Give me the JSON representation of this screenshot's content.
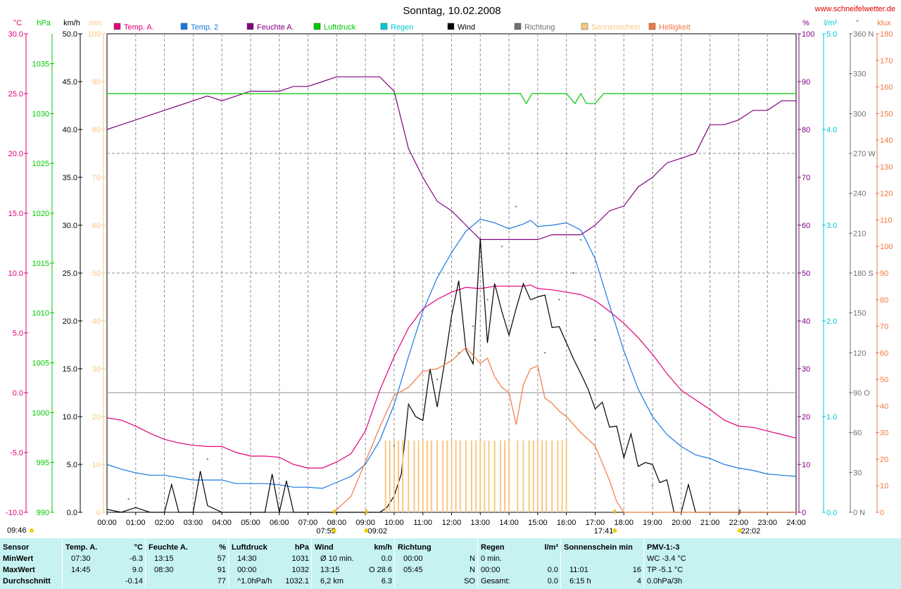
{
  "title": "Sonntag, 10.02.2008",
  "website": "www.schneifelwetter.de",
  "colors": {
    "temp": "#e0007a",
    "temp2": "#1a78e0",
    "humidity": "#800080",
    "pressure": "#00c800",
    "rain": "#00c8d0",
    "wind": "#000000",
    "direction": "#707070",
    "sunshine": "#f8c880",
    "brightness": "#f07840",
    "stats_bg": "#c6f2f2"
  },
  "legend": [
    {
      "label": "Temp. A.",
      "color": "#e0007a"
    },
    {
      "label": "Temp. 2",
      "color": "#1a78e0"
    },
    {
      "label": "Feuchte A.",
      "color": "#800080"
    },
    {
      "label": "Luftdruck",
      "color": "#00c800"
    },
    {
      "label": "Regen",
      "color": "#00c8d0"
    },
    {
      "label": "Wind",
      "color": "#000000"
    },
    {
      "label": "Richtung",
      "color": "#707070"
    },
    {
      "label": "Sonnenschein",
      "color": "#f8c880"
    },
    {
      "label": "Helligkeit",
      "color": "#f07840"
    }
  ],
  "chart_data": {
    "type": "line",
    "title": "Sonntag, 10.02.2008",
    "x_unit": "hours",
    "x_ticks": [
      "00:00",
      "01:00",
      "02:00",
      "03:00",
      "04:00",
      "05:00",
      "06:00",
      "07:00",
      "08:00",
      "09:00",
      "10:00",
      "11:00",
      "12:00",
      "13:00",
      "14:00",
      "15:00",
      "16:00",
      "17:00",
      "18:00",
      "19:00",
      "20:00",
      "21:00",
      "22:00",
      "23:00",
      "24:00"
    ],
    "axes": {
      "temp": {
        "unit": "°C",
        "range": [
          -10,
          30
        ],
        "ticks": [
          "-10.0",
          "-5.0",
          "0.0",
          "5.0",
          "10.0",
          "15.0",
          "20.0",
          "25.0",
          "30.0"
        ]
      },
      "pressure": {
        "unit": "hPa",
        "range": [
          990,
          1038
        ],
        "ticks": [
          "990",
          "995",
          "1000",
          "1005",
          "1010",
          "1015",
          "1020",
          "1025",
          "1030",
          "1035"
        ]
      },
      "wind": {
        "unit": "km/h",
        "range": [
          0,
          50
        ],
        "ticks": [
          "0.0",
          "5.0",
          "10.0",
          "15.0",
          "20.0",
          "25.0",
          "30.0",
          "35.0",
          "40.0",
          "45.0",
          "50.0"
        ]
      },
      "sunshine": {
        "unit": "min",
        "range": [
          0,
          100
        ],
        "ticks": [
          "0",
          "10",
          "20",
          "30",
          "40",
          "50",
          "60",
          "70",
          "80",
          "90",
          "100"
        ]
      },
      "humidity": {
        "unit": "%",
        "range": [
          0,
          100
        ],
        "ticks": [
          "0",
          "10",
          "20",
          "30",
          "40",
          "50",
          "60",
          "70",
          "80",
          "90",
          "100"
        ]
      },
      "rain": {
        "unit": "l/m²",
        "range": [
          0,
          5
        ],
        "ticks": [
          "0.0",
          "1.0",
          "2.0",
          "3.0",
          "4.0",
          "5.0"
        ]
      },
      "direction": {
        "unit": "°",
        "range": [
          0,
          360
        ],
        "ticks": [
          "0 N",
          "30",
          "60",
          "90 O",
          "120",
          "150",
          "180 S",
          "210",
          "240",
          "270 W",
          "300",
          "330",
          "360 N"
        ]
      },
      "brightness": {
        "unit": "klux",
        "range": [
          0,
          180
        ],
        "ticks": [
          "0",
          "10",
          "20",
          "30",
          "40",
          "50",
          "60",
          "70",
          "80",
          "90",
          "100",
          "110",
          "120",
          "130",
          "140",
          "150",
          "160",
          "170",
          "180"
        ]
      }
    },
    "series": [
      {
        "name": "Temp. A.",
        "axis": "temp",
        "x": [
          0,
          0.5,
          1,
          1.5,
          2,
          2.5,
          3,
          3.5,
          4,
          4.5,
          5,
          5.5,
          6,
          6.5,
          7,
          7.5,
          8,
          8.5,
          9,
          9.5,
          10,
          10.5,
          11,
          11.5,
          12,
          12.5,
          13,
          13.5,
          14,
          14.5,
          14.75,
          15,
          15.5,
          16,
          16.5,
          17,
          17.5,
          18,
          18.5,
          19,
          19.5,
          20,
          20.5,
          21,
          21.5,
          22,
          22.5,
          23,
          23.5,
          24
        ],
        "y": [
          -2.1,
          -2.3,
          -2.8,
          -3.4,
          -3.9,
          -4.2,
          -4.4,
          -4.5,
          -4.5,
          -5.0,
          -5.3,
          -5.3,
          -5.4,
          -6.0,
          -6.3,
          -6.3,
          -5.8,
          -5.1,
          -3.2,
          0.2,
          3.0,
          5.4,
          7.0,
          7.8,
          8.4,
          8.8,
          8.7,
          8.9,
          8.9,
          8.9,
          9.0,
          8.7,
          8.6,
          8.4,
          8.2,
          7.7,
          6.8,
          5.8,
          4.6,
          3.2,
          1.6,
          0.2,
          -0.6,
          -1.4,
          -2.3,
          -2.8,
          -2.9,
          -3.2,
          -3.5,
          -3.8
        ]
      },
      {
        "name": "Temp. 2",
        "axis": "temp",
        "x": [
          0,
          0.5,
          1,
          1.5,
          2,
          2.5,
          3,
          3.5,
          4,
          4.5,
          5,
          5.5,
          6,
          6.5,
          7,
          7.5,
          8,
          8.5,
          9,
          9.5,
          10,
          10.5,
          11,
          11.5,
          12,
          12.5,
          13,
          13.5,
          14,
          14.5,
          14.75,
          15,
          15.5,
          16,
          16.5,
          17,
          17.5,
          18,
          18.5,
          19,
          19.5,
          20,
          20.5,
          21,
          21.5,
          22,
          22.5,
          23,
          23.5,
          24
        ],
        "y": [
          -6.0,
          -6.4,
          -6.7,
          -6.9,
          -6.9,
          -7.1,
          -7.3,
          -7.3,
          -7.3,
          -7.6,
          -7.6,
          -7.6,
          -7.7,
          -7.9,
          -7.9,
          -8.0,
          -7.5,
          -7.0,
          -6.0,
          -4.0,
          -1.0,
          3.0,
          6.8,
          9.6,
          11.7,
          13.5,
          14.5,
          14.2,
          13.7,
          14.1,
          14.4,
          13.9,
          14.0,
          14.2,
          13.6,
          11.2,
          7.3,
          3.5,
          0.3,
          -2.0,
          -3.5,
          -4.5,
          -5.2,
          -5.5,
          -6.0,
          -6.3,
          -6.5,
          -6.8,
          -6.9,
          -7.0
        ]
      },
      {
        "name": "Feuchte A.",
        "axis": "humidity",
        "x": [
          0,
          0.5,
          1,
          1.5,
          2,
          2.5,
          3,
          3.5,
          4,
          4.5,
          5,
          5.5,
          6,
          6.5,
          7,
          7.5,
          8,
          8.5,
          9,
          9.5,
          10,
          10.5,
          11,
          11.5,
          12,
          12.5,
          13,
          13.5,
          14,
          14.5,
          15,
          15.5,
          16,
          16.5,
          17,
          17.5,
          18,
          18.5,
          19,
          19.5,
          20,
          20.5,
          21,
          21.5,
          22,
          22.5,
          23,
          23.5,
          24
        ],
        "y": [
          80,
          81,
          82,
          83,
          84,
          85,
          86,
          87,
          86,
          87,
          88,
          88,
          88,
          89,
          89,
          90,
          91,
          91,
          91,
          91,
          88,
          76,
          70,
          65,
          63,
          60,
          57,
          57,
          57,
          57,
          57,
          58,
          58,
          58,
          60,
          63,
          64,
          68,
          70,
          73,
          74,
          75,
          81,
          81,
          82,
          84,
          84,
          86,
          86
        ]
      },
      {
        "name": "Luftdruck",
        "axis": "pressure",
        "x": [
          0,
          4,
          8,
          12,
          14,
          14.4,
          14.6,
          14.8,
          15,
          16,
          16.3,
          16.5,
          16.7,
          17,
          17.3,
          18,
          20,
          22,
          23,
          24
        ],
        "y": [
          1032,
          1032,
          1032,
          1032,
          1032,
          1032,
          1031,
          1032,
          1032,
          1032,
          1031,
          1032,
          1031,
          1031,
          1032,
          1032,
          1032,
          1032,
          1032,
          1032
        ]
      },
      {
        "name": "Wind",
        "axis": "wind",
        "x": [
          0,
          0.5,
          1,
          1.5,
          2,
          2.25,
          2.5,
          3,
          3.25,
          3.5,
          4,
          4.5,
          5,
          5.5,
          5.75,
          6,
          6.25,
          6.5,
          7,
          8,
          9,
          9.5,
          9.75,
          10,
          10.25,
          10.5,
          10.75,
          11,
          11.25,
          11.5,
          11.75,
          12,
          12.25,
          12.5,
          12.75,
          13,
          13.25,
          13.5,
          13.75,
          14,
          14.25,
          14.5,
          14.75,
          15,
          15.25,
          15.5,
          15.75,
          16,
          16.25,
          16.5,
          16.75,
          17,
          17.25,
          17.5,
          17.75,
          18,
          18.25,
          18.5,
          18.75,
          19,
          19.25,
          19.5,
          19.75,
          20,
          20.25,
          20.5,
          20.75,
          21,
          21.5,
          22,
          23,
          24
        ],
        "y": [
          0.3,
          0,
          0.5,
          0,
          0,
          2.9,
          0,
          0,
          4.3,
          0.7,
          0,
          0,
          0,
          0,
          4.0,
          0,
          3.3,
          0,
          0,
          0,
          0,
          0,
          0.5,
          1.7,
          4.0,
          11.3,
          10.0,
          9.6,
          15.0,
          11.0,
          15.5,
          20.5,
          24.2,
          17.0,
          15.5,
          28.6,
          17.7,
          23.9,
          21.0,
          18.5,
          21.3,
          23.9,
          22.2,
          22.5,
          22.7,
          19.3,
          19.4,
          17.7,
          16.0,
          14.5,
          12.9,
          10.8,
          11.5,
          8.9,
          9.0,
          5.7,
          8.2,
          4.8,
          5.2,
          5.0,
          3.1,
          3.4,
          0,
          0,
          2.9,
          0,
          0,
          0,
          0,
          0,
          0,
          0
        ]
      },
      {
        "name": "Helligkeit",
        "axis": "brightness",
        "x": [
          7.9,
          8,
          8.5,
          9,
          9.5,
          10,
          10.5,
          11,
          11.5,
          12,
          12.5,
          13,
          13.25,
          13.5,
          13.75,
          14,
          14.25,
          14.5,
          14.75,
          15,
          15.25,
          15.5,
          15.75,
          16,
          16.5,
          17,
          17.5,
          17.75,
          18,
          24
        ],
        "y": [
          0,
          1,
          6,
          19,
          32,
          44,
          47,
          53,
          54,
          57,
          62,
          56,
          58,
          51,
          47,
          45,
          33,
          48,
          54,
          55,
          43,
          41,
          38,
          36,
          30,
          25,
          12,
          4,
          0,
          0
        ]
      },
      {
        "name": "Sonnenschein",
        "axis": "sunshine",
        "x": [
          9.7,
          9.85,
          10,
          10.15,
          10.3,
          10.5,
          10.7,
          10.85,
          11,
          11.15,
          11.3,
          11.5,
          11.7,
          11.85,
          12,
          12.15,
          12.3,
          12.5,
          12.7,
          12.85,
          13,
          13.15,
          13.3,
          13.5,
          13.7,
          13.85,
          14,
          14.3,
          14.5,
          14.7,
          14.85,
          15,
          15.15,
          15.3,
          15.5,
          15.7,
          15.85,
          16
        ],
        "y": [
          15,
          15,
          15,
          15,
          15,
          15,
          15,
          15,
          15,
          15,
          15,
          15,
          15,
          15,
          15,
          15,
          15,
          15,
          15,
          15,
          15,
          15,
          15,
          15,
          15,
          15,
          15,
          15,
          15,
          15,
          15,
          15,
          15,
          15,
          15,
          15,
          15,
          15
        ]
      },
      {
        "name": "Richtung",
        "axis": "direction",
        "x": [
          0.75,
          3.5,
          10,
          10.5,
          11.5,
          12.25,
          12.75,
          13.25,
          13.75,
          14.25,
          14.75,
          15.25,
          15.75,
          16.25,
          16.5,
          17,
          18,
          19
        ],
        "y": [
          10,
          40,
          50,
          80,
          100,
          120,
          140,
          160,
          200,
          230,
          160,
          120,
          160,
          180,
          205,
          130,
          100,
          20
        ]
      }
    ]
  },
  "sun": {
    "sunrise": "07:55",
    "noon": "09:02",
    "sunset": "17:41",
    "moon": "22:02",
    "now": "09:46"
  },
  "stats": {
    "headers": {
      "sensor": "Sensor",
      "temp": "Temp. A.",
      "temp_unit": "°C",
      "hum": "Feuchte A.",
      "hum_unit": "%",
      "press": "Luftdruck",
      "press_unit": "hPa",
      "wind": "Wind",
      "wind_unit": "km/h",
      "dir": "Richtung",
      "rain": "Regen",
      "rain_unit": "l/m²",
      "sun": "Sonnenschein min",
      "pmv": "PMV-1:-3"
    },
    "rows": [
      {
        "label": "MinWert",
        "temp_time": "07:30",
        "temp_val": "-6.3",
        "hum_time": "13:15",
        "hum_val": "57",
        "press_time": "14:30",
        "press_val": "1031",
        "wind_time": "Ø 10 min.",
        "wind_val": "0.0",
        "dir_time": "00:00",
        "dir_val": "N",
        "rain_time": "0 min.",
        "rain_val": "",
        "sun_time": "",
        "sun_val": "",
        "pmv": "WC -3.4 °C"
      },
      {
        "label": "MaxWert",
        "temp_time": "14:45",
        "temp_val": "9.0",
        "hum_time": "08:30",
        "hum_val": "91",
        "press_time": "00:00",
        "press_val": "1032",
        "wind_time": "13:15",
        "wind_val": "O 28.6",
        "dir_time": "05:45",
        "dir_val": "N",
        "rain_time": "00:00",
        "rain_val": "0.0",
        "sun_time": "11:01",
        "sun_val": "16",
        "pmv": "TP -5.1 °C"
      },
      {
        "label": "Durchschnitt",
        "temp_time": "",
        "temp_val": "-0.14",
        "hum_time": "",
        "hum_val": "77",
        "press_time": "^1.0hPa/h",
        "press_val": "1032.1",
        "wind_time": "6,2 km",
        "wind_val": "6.3",
        "dir_time": "",
        "dir_val": "SO",
        "rain_time": "Gesamt:",
        "rain_val": "0.0",
        "sun_time": "6:15 h",
        "sun_val": "4",
        "pmv": "0.0hPa/3h"
      }
    ]
  }
}
